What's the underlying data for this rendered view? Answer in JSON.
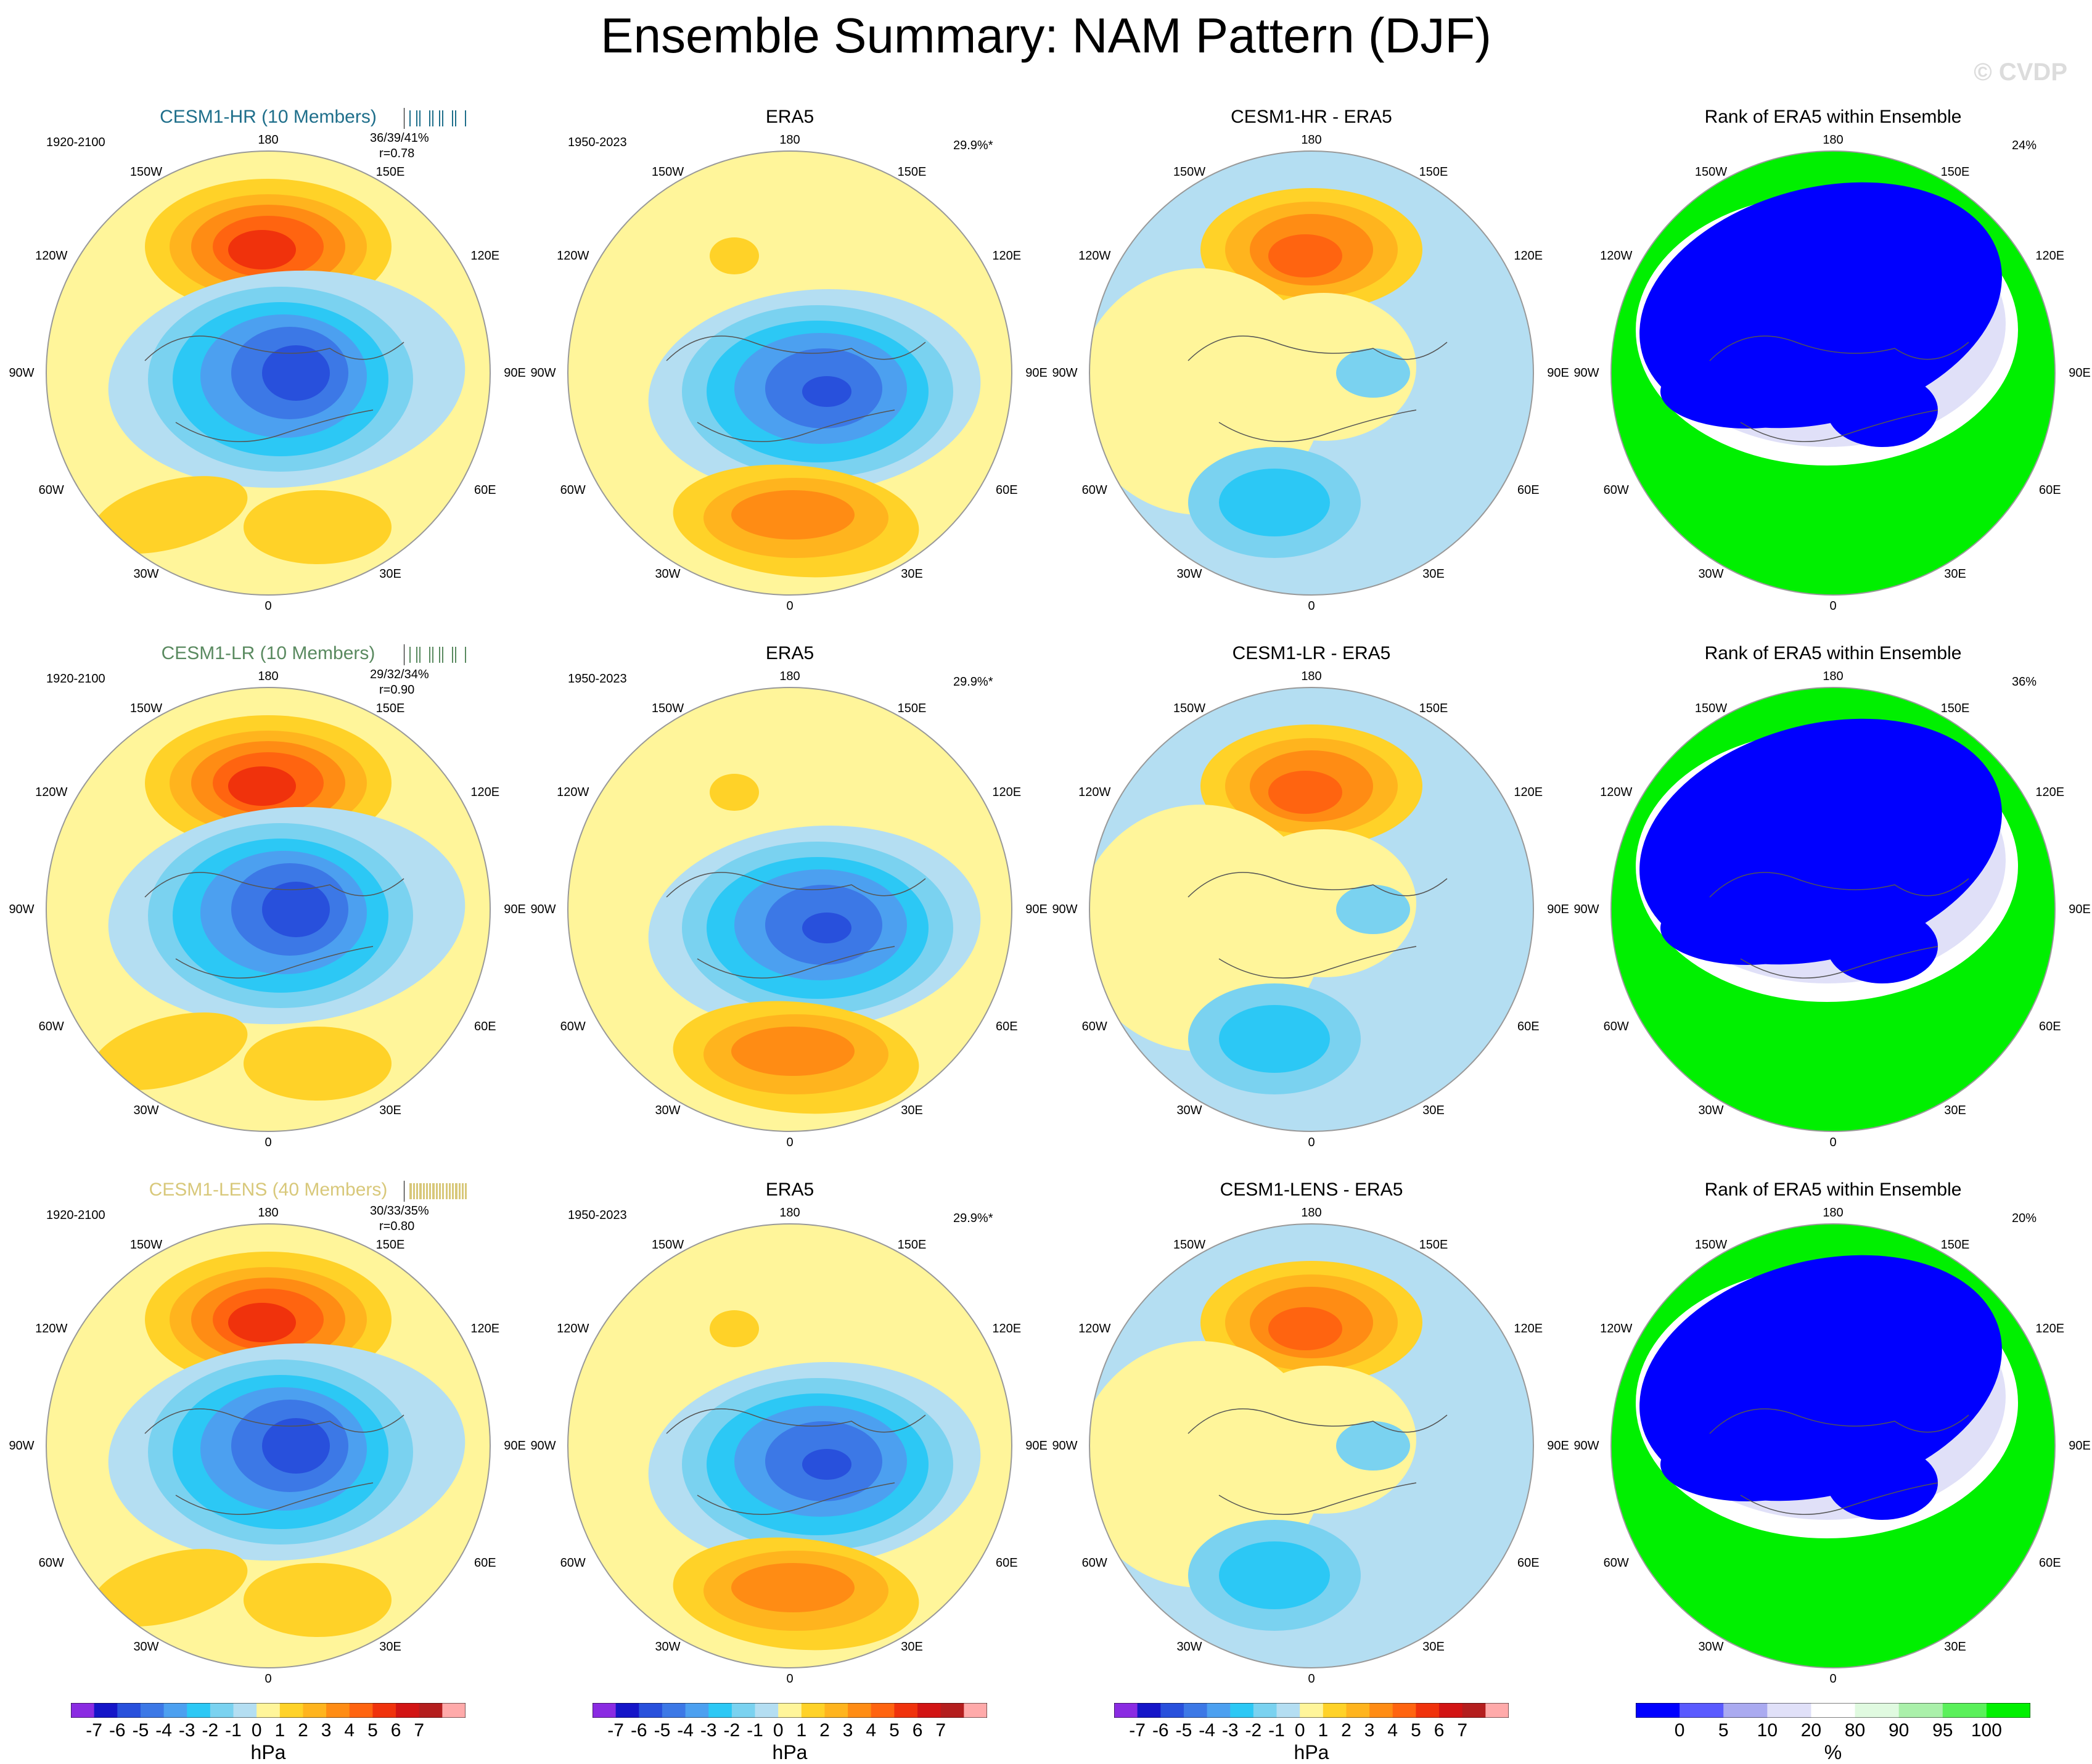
{
  "title": "Ensemble Summary: NAM Pattern (DJF)",
  "watermark": "© CVDP",
  "lon_labels": {
    "top": "180",
    "bottom": "0",
    "ul": "150W",
    "ur": "150E",
    "ml_up": "120W",
    "mr_up": "120E",
    "left": "90W",
    "right": "90E",
    "ml_lo": "60W",
    "mr_lo": "60E",
    "ll": "30W",
    "lr": "30E"
  },
  "rows": [
    {
      "model": {
        "title": "CESM1-HR (10 Members)",
        "title_color": "#1f6f8b",
        "period": "1920-2100",
        "stats": "36/39/41%",
        "corr": "r=0.78"
      },
      "era5": {
        "title": "ERA5",
        "period": "1950-2023",
        "pct": "29.9%*"
      },
      "diff": {
        "title": "CESM1-HR - ERA5"
      },
      "rank": {
        "title": "Rank of ERA5 within Ensemble",
        "pct": "24%"
      }
    },
    {
      "model": {
        "title": "CESM1-LR (10 Members)",
        "title_color": "#5a8a60",
        "period": "1920-2100",
        "stats": "29/32/34%",
        "corr": "r=0.90"
      },
      "era5": {
        "title": "ERA5",
        "period": "1950-2023",
        "pct": "29.9%*"
      },
      "diff": {
        "title": "CESM1-LR - ERA5"
      },
      "rank": {
        "title": "Rank of ERA5 within Ensemble",
        "pct": "36%"
      }
    },
    {
      "model": {
        "title": "CESM1-LENS (40 Members)",
        "title_color": "#d8c87a",
        "period": "1920-2100",
        "stats": "30/33/35%",
        "corr": "r=0.80"
      },
      "era5": {
        "title": "ERA5",
        "period": "1950-2023",
        "pct": "29.9%*"
      },
      "diff": {
        "title": "CESM1-LENS - ERA5"
      },
      "rank": {
        "title": "Rank of ERA5 within Ensemble",
        "pct": "20%"
      }
    }
  ],
  "colorbar_hpa": {
    "unit": "hPa",
    "ticks": [
      "-7",
      "-6",
      "-5",
      "-4",
      "-3",
      "-2",
      "-1",
      "0",
      "1",
      "2",
      "3",
      "4",
      "5",
      "6",
      "7"
    ],
    "colors": [
      "#8a2be2",
      "#1515c8",
      "#2850dc",
      "#3c78e6",
      "#4ca0f0",
      "#2cc8f5",
      "#7ad2f0",
      "#b4def2",
      "#fff59a",
      "#ffd228",
      "#ffb41e",
      "#ff8c14",
      "#ff6410",
      "#f0320c",
      "#d21414",
      "#b41e1e",
      "#ffaaaa"
    ]
  },
  "colorbar_pct": {
    "unit": "%",
    "ticks": [
      "0",
      "5",
      "10",
      "20",
      "80",
      "90",
      "95",
      "100"
    ],
    "colors": [
      "#0000ff",
      "#5a5aff",
      "#aaaaf0",
      "#e0e0f8",
      "#ffffff",
      "#e0fae0",
      "#aaf0aa",
      "#5af05a",
      "#00f000"
    ]
  }
}
